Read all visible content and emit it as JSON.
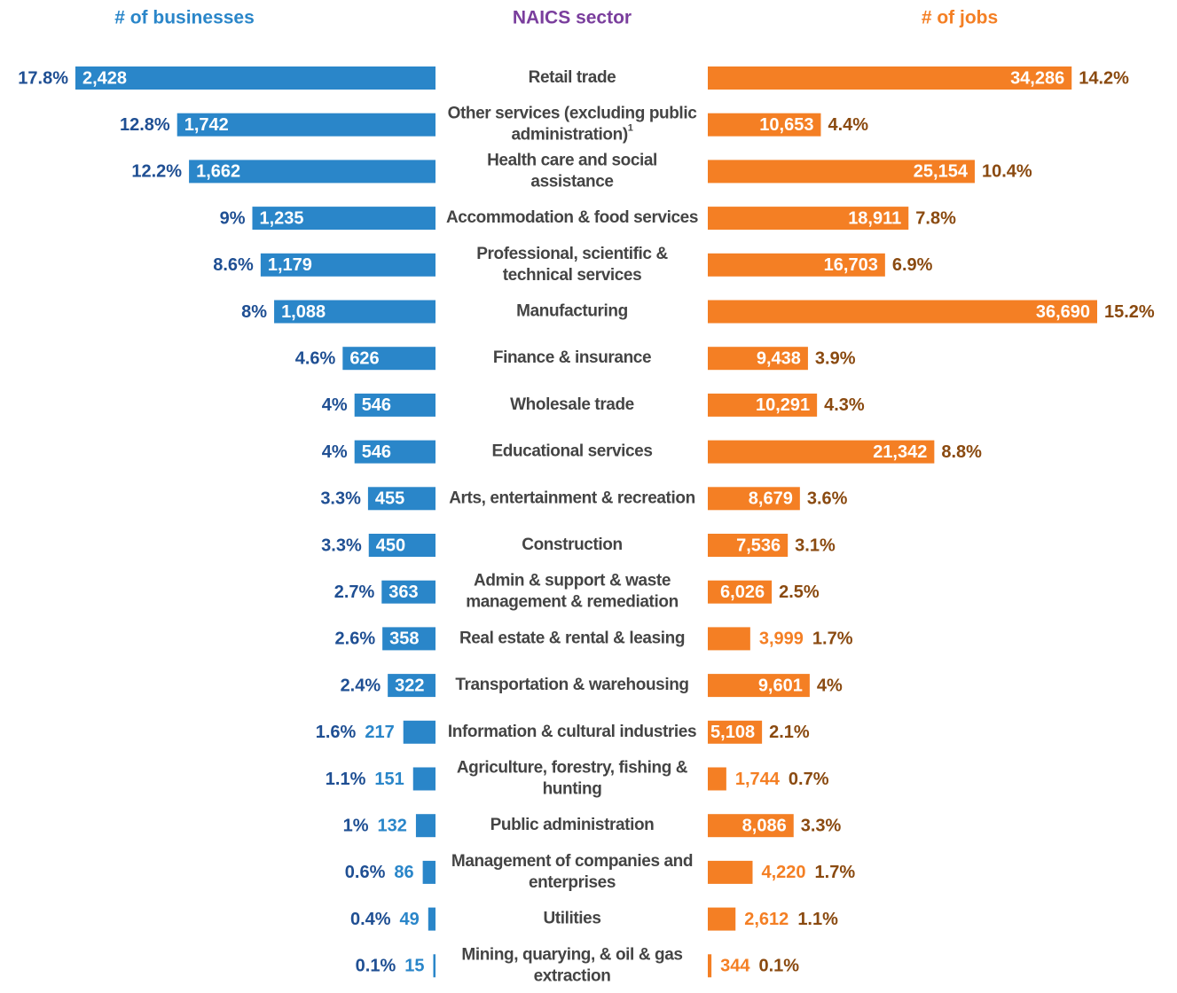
{
  "chart_data": {
    "type": "butterfly",
    "category_title": "NAICS sector",
    "categories": [
      "Retail trade",
      {
        "label": "Other services (excluding public administration)",
        "footnote": "1"
      },
      "Health care and social assistance",
      "Accommodation & food services",
      "Professional, scientific & technical services",
      "Manufacturing",
      "Finance & insurance",
      "Wholesale trade",
      "Educational services",
      "Arts, entertainment & recreation",
      "Construction",
      "Admin & support & waste management & remediation",
      "Real estate & rental & leasing",
      "Transportation & warehousing",
      "Information & cultural industries",
      "Agriculture, forestry, fishing & hunting",
      "Public administration",
      "Management of companies and enterprises",
      "Utilities",
      "Mining, quarying, & oil & gas extraction"
    ],
    "series": [
      {
        "name": "# of businesses",
        "color": "#2a86c9",
        "share_color": "#1f4f93",
        "values": [
          2428,
          1742,
          1662,
          1235,
          1179,
          1088,
          626,
          546,
          546,
          455,
          450,
          363,
          358,
          322,
          217,
          151,
          132,
          86,
          49,
          15
        ],
        "value_labels": [
          "2,428",
          "1,742",
          "1,662",
          "1,235",
          "1,179",
          "1,088",
          "626",
          "546",
          "546",
          "455",
          "450",
          "363",
          "358",
          "322",
          "217",
          "151",
          "132",
          "86",
          "49",
          "15"
        ],
        "shares": [
          17.8,
          12.8,
          12.2,
          9,
          8.6,
          8,
          4.6,
          4,
          4,
          3.3,
          3.3,
          2.7,
          2.6,
          2.4,
          1.6,
          1.1,
          1,
          0.6,
          0.4,
          0.1
        ],
        "share_labels": [
          "17.8%",
          "12.8%",
          "12.2%",
          "9%",
          "8.6%",
          "8%",
          "4.6%",
          "4%",
          "4%",
          "3.3%",
          "3.3%",
          "2.7%",
          "2.6%",
          "2.4%",
          "1.6%",
          "1.1%",
          "1%",
          "0.6%",
          "0.4%",
          "0.1%"
        ]
      },
      {
        "name": "# of jobs",
        "color": "#f47f24",
        "share_color": "#8a4a10",
        "values": [
          34286,
          10653,
          25154,
          18911,
          16703,
          36690,
          9438,
          10291,
          21342,
          8679,
          7536,
          6026,
          3999,
          9601,
          5108,
          1744,
          8086,
          4220,
          2612,
          344
        ],
        "value_labels": [
          "34,286",
          "10,653",
          "25,154",
          "18,911",
          "16,703",
          "36,690",
          "9,438",
          "10,291",
          "21,342",
          "8,679",
          "7,536",
          "6,026",
          "3,999",
          "9,601",
          "5,108",
          "1,744",
          "8,086",
          "4,220",
          "2,612",
          "344"
        ],
        "shares": [
          14.2,
          4.4,
          10.4,
          7.8,
          6.9,
          15.2,
          3.9,
          4.3,
          8.8,
          3.6,
          3.1,
          2.5,
          1.7,
          4,
          2.1,
          0.7,
          3.3,
          1.7,
          1.1,
          0.1
        ],
        "share_labels": [
          "14.2%",
          "4.4%",
          "10.4%",
          "7.8%",
          "6.9%",
          "15.2%",
          "3.9%",
          "4.3%",
          "8.8%",
          "3.6%",
          "3.1%",
          "2.5%",
          "1.7%",
          "4%",
          "2.1%",
          "0.7%",
          "3.3%",
          "1.7%",
          "1.1%",
          "0.1%"
        ]
      }
    ]
  }
}
